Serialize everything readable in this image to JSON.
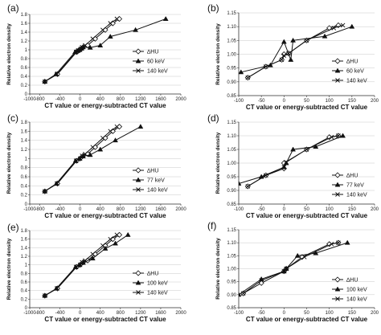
{
  "chart_data": [
    {
      "panel": "(a)",
      "type": "line",
      "xlabel": "CT value or energy-subtracted CT value",
      "ylabel": "Relative electron density",
      "xlim": [
        -1000,
        2000
      ],
      "ylim": [
        0,
        1.8
      ],
      "xticks": [
        -1000,
        -800,
        -400,
        0,
        400,
        800,
        1200,
        1600,
        2000
      ],
      "yticks": [
        0,
        0.2,
        0.4,
        0.6,
        0.8,
        1,
        1.2,
        1.4,
        1.6,
        1.8
      ],
      "series": [
        {
          "name": "∆HU",
          "marker": "diamond",
          "points": [
            [
              -700,
              0.28
            ],
            [
              -450,
              0.45
            ],
            [
              -70,
              0.95
            ],
            [
              -30,
              0.98
            ],
            [
              0,
              1.0
            ],
            [
              30,
              1.03
            ],
            [
              60,
              1.06
            ],
            [
              150,
              1.1
            ],
            [
              300,
              1.25
            ],
            [
              500,
              1.45
            ],
            [
              650,
              1.6
            ],
            [
              780,
              1.7
            ]
          ]
        },
        {
          "name": "60 keV",
          "marker": "triangle",
          "points": [
            [
              -700,
              0.28
            ],
            [
              -480,
              0.45
            ],
            [
              -100,
              0.95
            ],
            [
              -60,
              0.98
            ],
            [
              -20,
              1.0
            ],
            [
              30,
              1.03
            ],
            [
              60,
              1.06
            ],
            [
              200,
              1.05
            ],
            [
              400,
              1.1
            ],
            [
              600,
              1.3
            ],
            [
              1100,
              1.45
            ],
            [
              1700,
              1.7
            ]
          ]
        },
        {
          "name": "140 keV",
          "marker": "x",
          "points": [
            [
              -700,
              0.28
            ],
            [
              -460,
              0.45
            ],
            [
              -80,
              0.95
            ],
            [
              -40,
              0.98
            ],
            [
              0,
              1.0
            ],
            [
              20,
              1.03
            ],
            [
              40,
              1.06
            ],
            [
              100,
              1.1
            ],
            [
              250,
              1.25
            ],
            [
              450,
              1.45
            ],
            [
              600,
              1.6
            ],
            [
              730,
              1.7
            ]
          ]
        }
      ],
      "legend_pos": "right-middle"
    },
    {
      "panel": "(b)",
      "type": "line",
      "xlabel": "CT value or energy-subtracted CT value",
      "ylabel": "Relative electron density",
      "xlim": [
        -100,
        200
      ],
      "ylim": [
        0.85,
        1.15
      ],
      "xticks": [
        -100,
        -50,
        0,
        50,
        100,
        150,
        200
      ],
      "yticks": [
        0.85,
        0.9,
        0.95,
        1.0,
        1.05,
        1.1,
        1.15
      ],
      "series": [
        {
          "name": "∆HU",
          "marker": "diamond",
          "points": [
            [
              -80,
              0.915
            ],
            [
              -40,
              0.955
            ],
            [
              -5,
              0.98
            ],
            [
              0,
              1.0
            ],
            [
              10,
              1.003
            ],
            [
              50,
              1.05
            ],
            [
              100,
              1.095
            ],
            [
              120,
              1.105
            ]
          ]
        },
        {
          "name": "60 keV",
          "marker": "triangle",
          "points": [
            [
              -95,
              0.935
            ],
            [
              -30,
              0.96
            ],
            [
              0,
              1.045
            ],
            [
              15,
              0.98
            ],
            [
              20,
              1.05
            ],
            [
              90,
              1.065
            ],
            [
              150,
              1.1
            ]
          ]
        },
        {
          "name": "140 keV",
          "marker": "x",
          "points": [
            [
              -80,
              0.915
            ],
            [
              -40,
              0.955
            ],
            [
              -5,
              0.98
            ],
            [
              0,
              0.995
            ],
            [
              10,
              1.003
            ],
            [
              50,
              1.05
            ],
            [
              110,
              1.095
            ],
            [
              130,
              1.105
            ]
          ]
        }
      ],
      "legend_pos": "right-bottom"
    },
    {
      "panel": "(c)",
      "type": "line",
      "xlabel": "CT value or energy-subtracted CT value",
      "ylabel": "Relative electron density",
      "xlim": [
        -1000,
        2000
      ],
      "ylim": [
        0,
        1.8
      ],
      "xticks": [
        -1000,
        -800,
        -400,
        0,
        400,
        800,
        1200,
        1600,
        2000
      ],
      "yticks": [
        0,
        0.2,
        0.4,
        0.6,
        0.8,
        1,
        1.2,
        1.4,
        1.6,
        1.8
      ],
      "series": [
        {
          "name": "∆HU",
          "marker": "diamond",
          "points": [
            [
              -700,
              0.28
            ],
            [
              -450,
              0.45
            ],
            [
              -70,
              0.95
            ],
            [
              0,
              1.0
            ],
            [
              60,
              1.06
            ],
            [
              150,
              1.1
            ],
            [
              300,
              1.25
            ],
            [
              500,
              1.45
            ],
            [
              650,
              1.6
            ],
            [
              780,
              1.7
            ]
          ]
        },
        {
          "name": "77 keV",
          "marker": "triangle",
          "points": [
            [
              -700,
              0.28
            ],
            [
              -470,
              0.45
            ],
            [
              -90,
              0.95
            ],
            [
              -10,
              1.0
            ],
            [
              60,
              1.05
            ],
            [
              200,
              1.08
            ],
            [
              400,
              1.2
            ],
            [
              700,
              1.4
            ],
            [
              1200,
              1.7
            ]
          ]
        },
        {
          "name": "140 keV",
          "marker": "x",
          "points": [
            [
              -700,
              0.28
            ],
            [
              -460,
              0.45
            ],
            [
              -80,
              0.95
            ],
            [
              0,
              1.0
            ],
            [
              40,
              1.06
            ],
            [
              100,
              1.1
            ],
            [
              250,
              1.25
            ],
            [
              450,
              1.45
            ],
            [
              600,
              1.6
            ],
            [
              730,
              1.7
            ]
          ]
        }
      ],
      "legend_pos": "right-middle"
    },
    {
      "panel": "(d)",
      "type": "line",
      "xlabel": "CT value or energy-subtracted CT value",
      "ylabel": "Relative electron density",
      "xlim": [
        -100,
        200
      ],
      "ylim": [
        0.85,
        1.15
      ],
      "xticks": [
        -100,
        -50,
        0,
        50,
        100,
        150,
        200
      ],
      "yticks": [
        0.85,
        0.9,
        0.95,
        1.0,
        1.05,
        1.1,
        1.15
      ],
      "series": [
        {
          "name": "∆HU",
          "marker": "diamond",
          "points": [
            [
              -80,
              0.915
            ],
            [
              -40,
              0.955
            ],
            [
              0,
              0.98
            ],
            [
              0,
              1.0
            ],
            [
              50,
              1.05
            ],
            [
              100,
              1.095
            ],
            [
              120,
              1.1
            ]
          ]
        },
        {
          "name": "77 keV",
          "marker": "triangle",
          "points": [
            [
              -100,
              0.925
            ],
            [
              -50,
              0.95
            ],
            [
              0,
              0.985
            ],
            [
              5,
              1.0
            ],
            [
              20,
              1.05
            ],
            [
              70,
              1.06
            ],
            [
              130,
              1.1
            ]
          ]
        },
        {
          "name": "140 keV",
          "marker": "x",
          "points": [
            [
              -80,
              0.915
            ],
            [
              -40,
              0.955
            ],
            [
              0,
              0.985
            ],
            [
              5,
              1.003
            ],
            [
              50,
              1.05
            ],
            [
              105,
              1.095
            ],
            [
              120,
              1.1
            ]
          ]
        }
      ],
      "legend_pos": "right-bottom"
    },
    {
      "panel": "(e)",
      "type": "line",
      "xlabel": "CT value or energy-subtracted CT value",
      "ylabel": "Relative electron density",
      "xlim": [
        -1000,
        2000
      ],
      "ylim": [
        0,
        1.8
      ],
      "xticks": [
        -1000,
        -800,
        -400,
        0,
        400,
        800,
        1200,
        1600,
        2000
      ],
      "yticks": [
        0,
        0.2,
        0.4,
        0.6,
        0.8,
        1,
        1.2,
        1.4,
        1.6,
        1.8
      ],
      "series": [
        {
          "name": "∆HU",
          "marker": "diamond",
          "points": [
            [
              -700,
              0.28
            ],
            [
              -450,
              0.45
            ],
            [
              -70,
              0.95
            ],
            [
              0,
              1.0
            ],
            [
              60,
              1.06
            ],
            [
              150,
              1.1
            ],
            [
              300,
              1.25
            ],
            [
              500,
              1.45
            ],
            [
              650,
              1.6
            ],
            [
              780,
              1.7
            ]
          ]
        },
        {
          "name": "100 keV",
          "marker": "triangle",
          "points": [
            [
              -700,
              0.28
            ],
            [
              -470,
              0.45
            ],
            [
              -90,
              0.95
            ],
            [
              -10,
              1.0
            ],
            [
              60,
              1.05
            ],
            [
              250,
              1.15
            ],
            [
              500,
              1.38
            ],
            [
              700,
              1.5
            ],
            [
              950,
              1.7
            ]
          ]
        },
        {
          "name": "140 keV",
          "marker": "x",
          "points": [
            [
              -700,
              0.28
            ],
            [
              -460,
              0.45
            ],
            [
              -80,
              0.95
            ],
            [
              0,
              1.0
            ],
            [
              40,
              1.06
            ],
            [
              100,
              1.1
            ],
            [
              250,
              1.25
            ],
            [
              450,
              1.45
            ],
            [
              600,
              1.6
            ],
            [
              730,
              1.7
            ]
          ]
        }
      ],
      "legend_pos": "right-middle"
    },
    {
      "panel": "(f)",
      "type": "line",
      "xlabel": "CT value or energy-subtracted CT value",
      "ylabel": "Relative electron density",
      "xlim": [
        -100,
        200
      ],
      "ylim": [
        0.85,
        1.15
      ],
      "xticks": [
        -100,
        -50,
        0,
        50,
        100,
        150,
        200
      ],
      "yticks": [
        0.85,
        0.9,
        0.95,
        1.0,
        1.05,
        1.1,
        1.15
      ],
      "series": [
        {
          "name": "∆HU",
          "marker": "diamond",
          "points": [
            [
              -90,
              0.905
            ],
            [
              -50,
              0.945
            ],
            [
              0,
              0.99
            ],
            [
              5,
              1.0
            ],
            [
              40,
              1.045
            ],
            [
              100,
              1.095
            ],
            [
              120,
              1.1
            ]
          ]
        },
        {
          "name": "100 keV",
          "marker": "triangle",
          "points": [
            [
              -100,
              0.9
            ],
            [
              -50,
              0.96
            ],
            [
              0,
              0.99
            ],
            [
              5,
              1.0
            ],
            [
              30,
              1.05
            ],
            [
              70,
              1.06
            ],
            [
              140,
              1.1
            ]
          ]
        },
        {
          "name": "140 keV",
          "marker": "x",
          "points": [
            [
              -90,
              0.905
            ],
            [
              -50,
              0.955
            ],
            [
              0,
              0.99
            ],
            [
              5,
              1.0
            ],
            [
              45,
              1.045
            ],
            [
              105,
              1.095
            ],
            [
              120,
              1.1
            ]
          ]
        }
      ],
      "legend_pos": "right-bottom"
    }
  ]
}
